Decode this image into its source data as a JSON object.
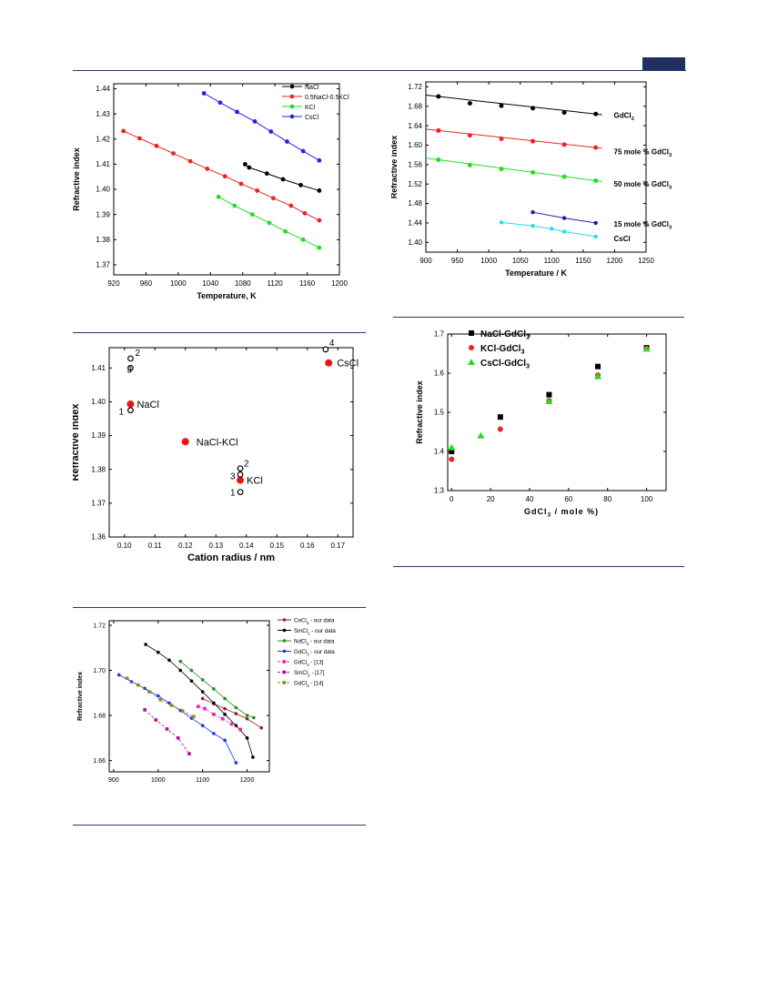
{
  "colors": {
    "rule": "#2b3a67",
    "tab": "#1f2f63"
  },
  "figures": {
    "fig_a": {
      "chart_data": {
        "type": "line",
        "xlabel": "Temperature, K",
        "ylabel": "Refractive index",
        "xlim": [
          920,
          1200
        ],
        "ylim": [
          1.366,
          1.442
        ],
        "xticks": [
          920,
          960,
          1000,
          1040,
          1080,
          1120,
          1160,
          1200
        ],
        "yticks": [
          1.37,
          1.38,
          1.39,
          1.4,
          1.41,
          1.42,
          1.43,
          1.44
        ],
        "legend": "top-right",
        "series": [
          {
            "name": "NaCl",
            "color": "#000000",
            "x": [
              1083,
              1088,
              1110,
              1130,
              1152,
              1175
            ],
            "y": [
              1.41,
              1.4087,
              1.4063,
              1.404,
              1.4017,
              1.3995
            ]
          },
          {
            "name": "0.5NaCl-0.5KCl",
            "color": "#ee2222",
            "x": [
              932,
              952,
              973,
              994,
              1015,
              1036,
              1058,
              1078,
              1098,
              1118,
              1140,
              1157,
              1175
            ],
            "y": [
              1.4232,
              1.4203,
              1.4173,
              1.4143,
              1.4112,
              1.4082,
              1.4052,
              1.4022,
              1.3995,
              1.3965,
              1.3935,
              1.3905,
              1.3877
            ]
          },
          {
            "name": "KCl",
            "color": "#22dd22",
            "x": [
              1050,
              1070,
              1092,
              1113,
              1133,
              1155,
              1175
            ],
            "y": [
              1.397,
              1.3935,
              1.39,
              1.3867,
              1.3833,
              1.38,
              1.3768
            ]
          },
          {
            "name": "CsCl",
            "color": "#2222ee",
            "x": [
              1032,
              1052,
              1073,
              1095,
              1115,
              1135,
              1155,
              1175
            ],
            "y": [
              1.4382,
              1.4345,
              1.4308,
              1.427,
              1.423,
              1.419,
              1.4152,
              1.4115
            ]
          }
        ]
      }
    },
    "fig_b": {
      "chart_data": {
        "type": "line",
        "xlabel": "Temperature / K",
        "ylabel": "Refractive index",
        "xlim": [
          900,
          1250
        ],
        "ylim": [
          1.38,
          1.73
        ],
        "xticks": [
          900,
          950,
          1000,
          1050,
          1100,
          1150,
          1200,
          1250
        ],
        "yticks": [
          1.4,
          1.44,
          1.48,
          1.52,
          1.56,
          1.6,
          1.64,
          1.68,
          1.72
        ],
        "annotations": [
          "GdCl3",
          "75 mole % GdCl3",
          "50 mole % GdCl3",
          "15 mole % GdCl3",
          "CsCl"
        ],
        "series": [
          {
            "name": "GdCl3",
            "color": "#000000",
            "x": [
              920,
              970,
              1020,
              1070,
              1120,
              1170
            ],
            "y": [
              1.7,
              1.686,
              1.681,
              1.676,
              1.667,
              1.664
            ]
          },
          {
            "name": "75 mole % GdCl3",
            "color": "#ee2222",
            "x": [
              920,
              970,
              1020,
              1070,
              1120,
              1170
            ],
            "y": [
              1.63,
              1.62,
              1.613,
              1.608,
              1.601,
              1.595
            ]
          },
          {
            "name": "50 mole % GdCl3",
            "color": "#22dd22",
            "x": [
              920,
              970,
              1020,
              1070,
              1120,
              1170
            ],
            "y": [
              1.57,
              1.559,
              1.551,
              1.544,
              1.535,
              1.527
            ]
          },
          {
            "name": "15 mole % GdCl3",
            "color": "#1a1aaa",
            "x": [
              1070,
              1120,
              1170
            ],
            "y": [
              1.462,
              1.45,
              1.44
            ]
          },
          {
            "name": "CsCl",
            "color": "#22ddee",
            "x": [
              1020,
              1070,
              1100,
              1120,
              1170
            ],
            "y": [
              1.441,
              1.434,
              1.428,
              1.422,
              1.412
            ]
          }
        ]
      }
    },
    "fig_c": {
      "chart_data": {
        "type": "scatter",
        "xlabel": "Cation radius / nm",
        "ylabel": "Refractive index",
        "xlim": [
          0.095,
          0.175
        ],
        "ylim": [
          1.36,
          1.416
        ],
        "xticks": [
          0.1,
          0.11,
          0.12,
          0.13,
          0.14,
          0.15,
          0.16,
          0.17
        ],
        "xticklabels": [
          "0.10",
          "0.11",
          "0.12",
          "0.13",
          "0.14",
          "0.15",
          "0.16",
          "0.17"
        ],
        "yticks": [
          1.36,
          1.37,
          1.38,
          1.39,
          1.4,
          1.41
        ],
        "yticklabels": [
          "1.36",
          "1.37",
          "1.38",
          "1.39",
          "1.40",
          "1.41"
        ],
        "filled": [
          {
            "x": 0.102,
            "y": 1.3993,
            "label": "NaCl"
          },
          {
            "x": 0.12,
            "y": 1.3882,
            "label": "NaCl-KCl"
          },
          {
            "x": 0.138,
            "y": 1.3768,
            "label": "KCl"
          },
          {
            "x": 0.167,
            "y": 1.4115,
            "label": "CsCl"
          }
        ],
        "open": [
          {
            "x": 0.102,
            "y": 1.4128,
            "label": "2"
          },
          {
            "x": 0.102,
            "y": 1.41,
            "label": "3"
          },
          {
            "x": 0.102,
            "y": 1.3975,
            "label": "1"
          },
          {
            "x": 0.138,
            "y": 1.3803,
            "label": "2"
          },
          {
            "x": 0.138,
            "y": 1.3785,
            "label": "3"
          },
          {
            "x": 0.138,
            "y": 1.3733,
            "label": "1"
          },
          {
            "x": 0.166,
            "y": 1.4155,
            "label": "4"
          }
        ]
      }
    },
    "fig_d": {
      "chart_data": {
        "type": "scatter",
        "xlabel": "GdCl3 / mole %)",
        "ylabel": "Refractive index",
        "xlim": [
          -2,
          110
        ],
        "ylim": [
          1.3,
          1.7
        ],
        "xticks": [
          0,
          20,
          40,
          60,
          80,
          100
        ],
        "yticks": [
          1.3,
          1.4,
          1.5,
          1.6,
          1.7
        ],
        "yticklabels": [
          "1.3",
          "1.4",
          "1.5",
          "1.6",
          "1.7"
        ],
        "legend": "top-left",
        "series": [
          {
            "name": "NaCl-GdCl3",
            "color": "#000000",
            "marker": "square",
            "x": [
              0,
              25,
              50,
              75,
              100
            ],
            "y": [
              1.4,
              1.488,
              1.545,
              1.617,
              1.665
            ]
          },
          {
            "name": "KCl-GdCl3",
            "color": "#ee2222",
            "marker": "circle",
            "x": [
              0,
              25,
              50,
              75,
              100
            ],
            "y": [
              1.38,
              1.457,
              1.53,
              1.595,
              1.663
            ]
          },
          {
            "name": "CsCl-GdCl3",
            "color": "#22dd22",
            "marker": "triangle",
            "x": [
              0,
              15,
              50,
              75,
              100
            ],
            "y": [
              1.41,
              1.44,
              1.528,
              1.592,
              1.662
            ]
          }
        ]
      }
    },
    "fig_e": {
      "chart_data": {
        "type": "line",
        "xlabel": "Temperature / K",
        "ylabel": "Refractive index",
        "xlim": [
          890,
          1250
        ],
        "ylim": [
          1.655,
          1.722
        ],
        "xticks": [
          900,
          1000,
          1100,
          1200
        ],
        "yticks": [
          1.66,
          1.68,
          1.7,
          1.72
        ],
        "yticklabels": [
          "1.66",
          "1.68",
          "1.70",
          "1.72"
        ],
        "legend": "top-right",
        "series": [
          {
            "name": "CeCl3 - our data",
            "color": "#8b2222",
            "x": [
              1100,
              1125,
              1150,
              1175,
              1200,
              1232
            ],
            "y": [
              1.6875,
              1.6852,
              1.683,
              1.6808,
              1.6785,
              1.6745
            ]
          },
          {
            "name": "SmCl2 - our data",
            "color": "#000000",
            "x": [
              972,
              1000,
              1025,
              1050,
              1075,
              1100,
              1125,
              1150,
              1175,
              1200,
              1213
            ],
            "y": [
              1.7115,
              1.708,
              1.7045,
              1.7,
              1.6953,
              1.6905,
              1.6855,
              1.6805,
              1.6755,
              1.67,
              1.6615
            ]
          },
          {
            "name": "NdCl3 - our data",
            "color": "#228b22",
            "x": [
              1050,
              1075,
              1100,
              1125,
              1150,
              1175,
              1200,
              1215
            ],
            "y": [
              1.704,
              1.7,
              1.6958,
              1.6918,
              1.6875,
              1.6835,
              1.68,
              1.679
            ]
          },
          {
            "name": "GdCl3 - our data",
            "color": "#1a33ee",
            "x": [
              912,
              940,
              970,
              1000,
              1025,
              1050,
              1075,
              1100,
              1125,
              1150,
              1175
            ],
            "y": [
              1.698,
              1.695,
              1.692,
              1.6887,
              1.6855,
              1.6822,
              1.6788,
              1.6755,
              1.672,
              1.669,
              1.659
            ]
          },
          {
            "name": "GdCl3 - [13]",
            "color": "#ee22aa",
            "x": [
              1090,
              1105,
              1125,
              1145,
              1165,
              1185
            ],
            "y": [
              1.684,
              1.683,
              1.6805,
              1.6785,
              1.6762,
              1.6738
            ]
          },
          {
            "name": "SmCl2 - [17]",
            "color": "#aa1199",
            "x": [
              970,
              995,
              1020,
              1045,
              1070
            ],
            "y": [
              1.6825,
              1.678,
              1.674,
              1.67,
              1.663
            ]
          },
          {
            "name": "GdCl3 - [14]",
            "color": "#8b8b22",
            "x": [
              930,
              955,
              980,
              1005,
              1030,
              1055,
              1080
            ],
            "y": [
              1.6965,
              1.6935,
              1.6905,
              1.687,
              1.6845,
              1.682,
              1.6795
            ]
          }
        ]
      }
    }
  }
}
